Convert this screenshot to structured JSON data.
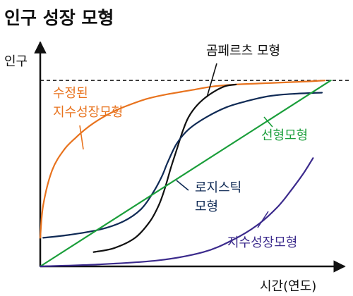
{
  "chart_data": {
    "type": "line",
    "title": "인구 성장 모형",
    "xlabel": "시간(연도)",
    "ylabel": "인구",
    "xlim": [
      0,
      100
    ],
    "ylim": [
      0,
      100
    ],
    "grid": false,
    "carrying_capacity": 91,
    "series": [
      {
        "name": "수정된 지수성장모형",
        "label_lines": [
          "수정된",
          "지수성장모형"
        ],
        "color": "#e8731e",
        "x": [
          0,
          1,
          4,
          8,
          12,
          16,
          20,
          25,
          30,
          36,
          42,
          50,
          58,
          66,
          74,
          82,
          90,
          96
        ],
        "y": [
          14,
          30,
          47,
          57,
          63,
          68,
          72,
          76,
          79,
          82,
          84,
          86,
          88,
          89,
          89.5,
          90,
          90.5,
          91
        ]
      },
      {
        "name": "곰페르츠 모형",
        "color": "#111111",
        "x": [
          18,
          25,
          32,
          37,
          40,
          42,
          44,
          46,
          48,
          50,
          53,
          57,
          62,
          66
        ],
        "y": [
          7,
          9,
          14,
          22,
          30,
          38,
          48,
          57,
          66,
          73,
          79,
          84,
          88,
          89
        ]
      },
      {
        "name": "로지스틱 모형",
        "label_lines": [
          "로지스틱",
          "모형"
        ],
        "color": "#0f2a55",
        "x": [
          1,
          10,
          20,
          28,
          34,
          38,
          41,
          43,
          46,
          50,
          56,
          63,
          70,
          78,
          86,
          95
        ],
        "y": [
          14,
          15.5,
          18,
          22,
          28,
          36,
          44,
          51,
          60,
          67,
          73,
          78,
          81,
          83.5,
          84.5,
          85
        ]
      },
      {
        "name": "선형모형",
        "color": "#1a9e3a",
        "x": [
          0,
          98
        ],
        "y": [
          0,
          91
        ]
      },
      {
        "name": "지수성장모형",
        "color": "#3b2a8c",
        "x": [
          0,
          20,
          40,
          55,
          65,
          73,
          80,
          85,
          89,
          92
        ],
        "y": [
          0,
          1,
          3,
          7,
          13,
          20,
          29,
          38,
          46,
          53
        ]
      }
    ]
  }
}
